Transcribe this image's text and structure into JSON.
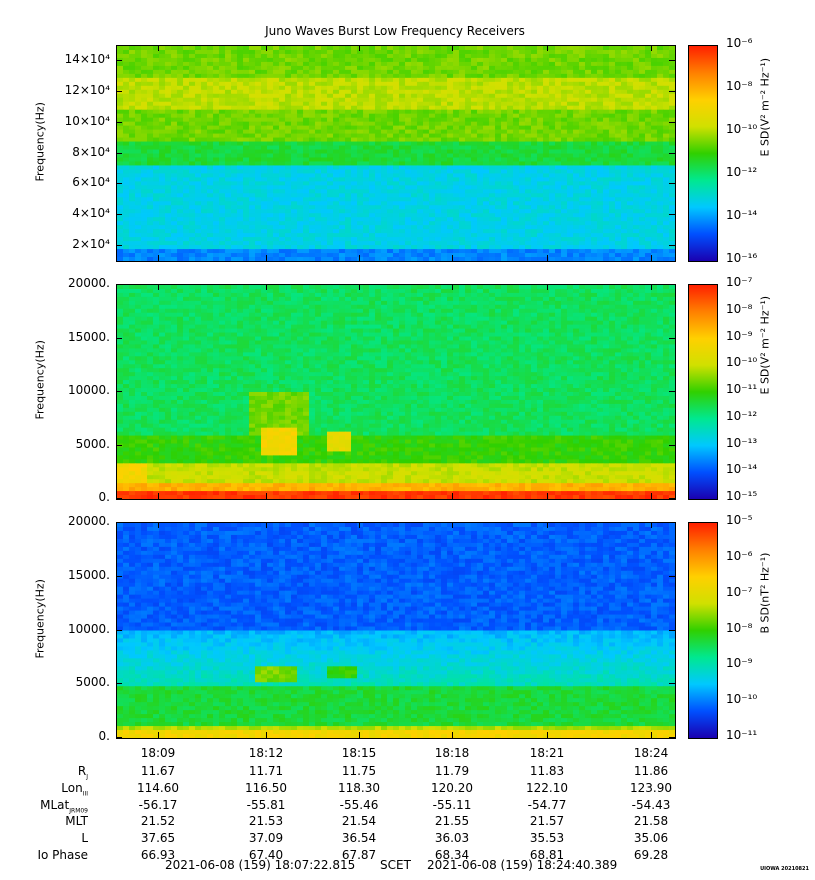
{
  "title": "Juno Waves Burst Low Frequency Receivers",
  "colors": {
    "spectrum": [
      "#1a00b0",
      "#0050ff",
      "#00c8ff",
      "#00e890",
      "#30d000",
      "#d0e000",
      "#ffd000",
      "#ff8000",
      "#ff2000"
    ]
  },
  "chart_data": [
    {
      "type": "heatmap",
      "ylabel": "Frequency(Hz)",
      "yticks": [
        "2×10⁴",
        "4×10⁴",
        "6×10⁴",
        "8×10⁴",
        "10×10⁴",
        "12×10⁴",
        "14×10⁴"
      ],
      "ytick_values": [
        20000,
        40000,
        60000,
        80000,
        100000,
        120000,
        140000
      ],
      "ylim": [
        10000,
        150000
      ],
      "colorbar": {
        "label": "E SD(V² m⁻² Hz⁻¹)",
        "ticks": [
          "10⁻⁶",
          "10⁻⁸",
          "10⁻¹⁰",
          "10⁻¹²",
          "10⁻¹⁴",
          "10⁻¹⁶"
        ],
        "range_exp": [
          -16,
          -6
        ]
      }
    },
    {
      "type": "heatmap",
      "ylabel": "Frequency(Hz)",
      "yticks": [
        "0.",
        "5000.",
        "10000.",
        "15000.",
        "20000."
      ],
      "ytick_values": [
        0,
        5000,
        10000,
        15000,
        20000
      ],
      "ylim": [
        0,
        20000
      ],
      "colorbar": {
        "label": "E SD(V² m⁻² Hz⁻¹)",
        "ticks": [
          "10⁻⁷",
          "10⁻⁸",
          "10⁻⁹",
          "10⁻¹⁰",
          "10⁻¹¹",
          "10⁻¹²",
          "10⁻¹³",
          "10⁻¹⁴",
          "10⁻¹⁵"
        ],
        "range_exp": [
          -15,
          -7
        ]
      }
    },
    {
      "type": "heatmap",
      "ylabel": "Frequency(Hz)",
      "yticks": [
        "0.",
        "5000.",
        "10000.",
        "15000.",
        "20000."
      ],
      "ytick_values": [
        0,
        5000,
        10000,
        15000,
        20000
      ],
      "ylim": [
        0,
        20000
      ],
      "colorbar": {
        "label": "B SD(nT² Hz⁻¹)",
        "ticks": [
          "10⁻⁵",
          "10⁻⁶",
          "10⁻⁷",
          "10⁻⁸",
          "10⁻⁹",
          "10⁻¹⁰",
          "10⁻¹¹"
        ],
        "range_exp": [
          -11,
          -4.5
        ]
      }
    }
  ],
  "xaxis": {
    "ticks": [
      "18:09",
      "18:12",
      "18:15",
      "18:18",
      "18:21",
      "18:24"
    ]
  },
  "ephemeris": {
    "rows": [
      {
        "label": "R",
        "sub": "J",
        "values": [
          "11.67",
          "11.71",
          "11.75",
          "11.79",
          "11.83",
          "11.86"
        ]
      },
      {
        "label": "Lon",
        "sub": "III",
        "values": [
          "114.60",
          "116.50",
          "118.30",
          "120.20",
          "122.10",
          "123.90"
        ]
      },
      {
        "label": "MLat",
        "sub": "JRM09",
        "values": [
          "-56.17",
          "-55.81",
          "-55.46",
          "-55.11",
          "-54.77",
          "-54.43"
        ]
      },
      {
        "label": "MLT",
        "sub": "",
        "values": [
          "21.52",
          "21.53",
          "21.54",
          "21.55",
          "21.57",
          "21.58"
        ]
      },
      {
        "label": "L",
        "sub": "",
        "values": [
          "37.65",
          "37.09",
          "36.54",
          "36.03",
          "35.53",
          "35.06"
        ]
      },
      {
        "label": "Io Phase",
        "sub": "",
        "values": [
          "66.93",
          "67.40",
          "67.87",
          "68.34",
          "68.81",
          "69.28"
        ]
      }
    ]
  },
  "footer": {
    "start": "2021-06-08 (159) 18:07:22.815",
    "scet": "SCET",
    "end": "2021-06-08 (159) 18:24:40.389"
  },
  "stamp": "UIOWA 20210821"
}
